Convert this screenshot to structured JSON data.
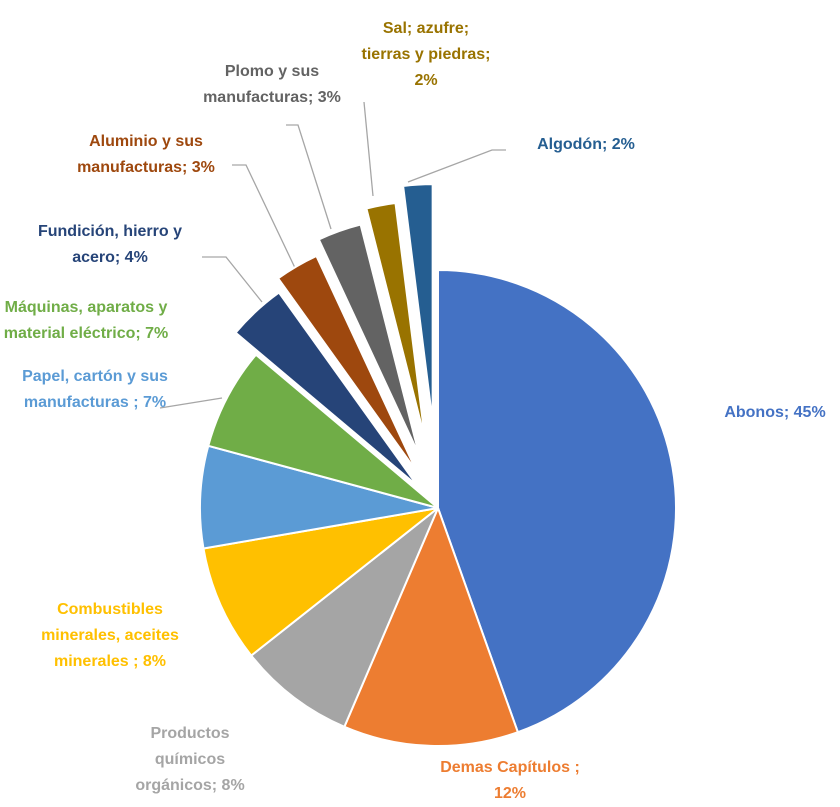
{
  "chart_data": {
    "type": "pie",
    "values": [
      45,
      12,
      8,
      8,
      7,
      7,
      4,
      3,
      3,
      2,
      2
    ],
    "value_labels": [
      "Abonos; 45%",
      "Demas Capítulos ; 12%",
      "Productos químicos orgánicos; 8%",
      "Combustibles minerales, aceites minerales ; 8%",
      "Papel, cartón y sus manufacturas ; 7%",
      "Máquinas, aparatos y material eléctrico; 7%",
      "Fundición, hierro y acero; 4%",
      "Aluminio y sus manufacturas; 3%",
      "Plomo y sus manufacturas; 3%",
      "Sal; azufre; tierras y piedras; 2%",
      "Algodón; 2%"
    ],
    "colors": [
      "#4472c4",
      "#ed7d31",
      "#a5a5a5",
      "#ffc000",
      "#5b9bd5",
      "#70ad47",
      "#264478",
      "#9e480e",
      "#636363",
      "#997300",
      "#255e91"
    ]
  }
}
